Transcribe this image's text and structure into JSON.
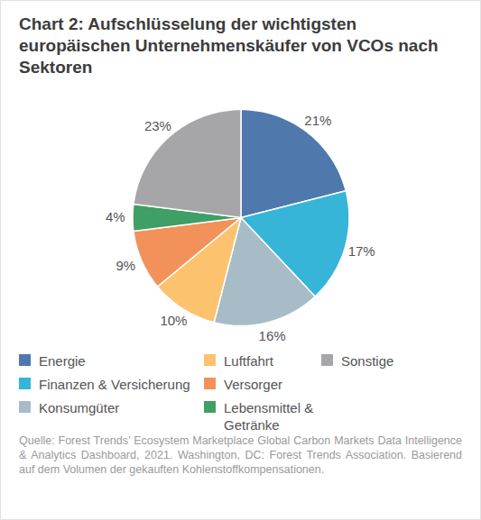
{
  "chart_data": {
    "type": "pie",
    "title": "Chart 2: Aufschlüsselung der wichtigsten europäischen Unternehmenskäufer von VCOs nach Sektoren",
    "categories": [
      "Energie",
      "Finanzen & Versicherung",
      "Konsumgüter",
      "Luftfahrt",
      "Versorger",
      "Lebensmittel & Getränke",
      "Sonstige"
    ],
    "values": [
      21,
      17,
      16,
      10,
      9,
      4,
      23
    ],
    "value_labels": [
      "21%",
      "17%",
      "16%",
      "10%",
      "9%",
      "4%",
      "23%"
    ],
    "colors": [
      "#4f78ad",
      "#36b5d8",
      "#a7bcc6",
      "#fdc26e",
      "#f2925a",
      "#3f9f64",
      "#a6a6a8"
    ],
    "data_labels": true,
    "legend": "bottom",
    "caption": "Quelle: Forest Trends’ Ecosystem Marketplace Global Carbon Markets Data Intelligence & Analytics Dashboard, 2021. Washington, DC: Forest Trends Association. Basierend auf dem Volumen der gekauften Kohlenstoffkompensationen."
  }
}
